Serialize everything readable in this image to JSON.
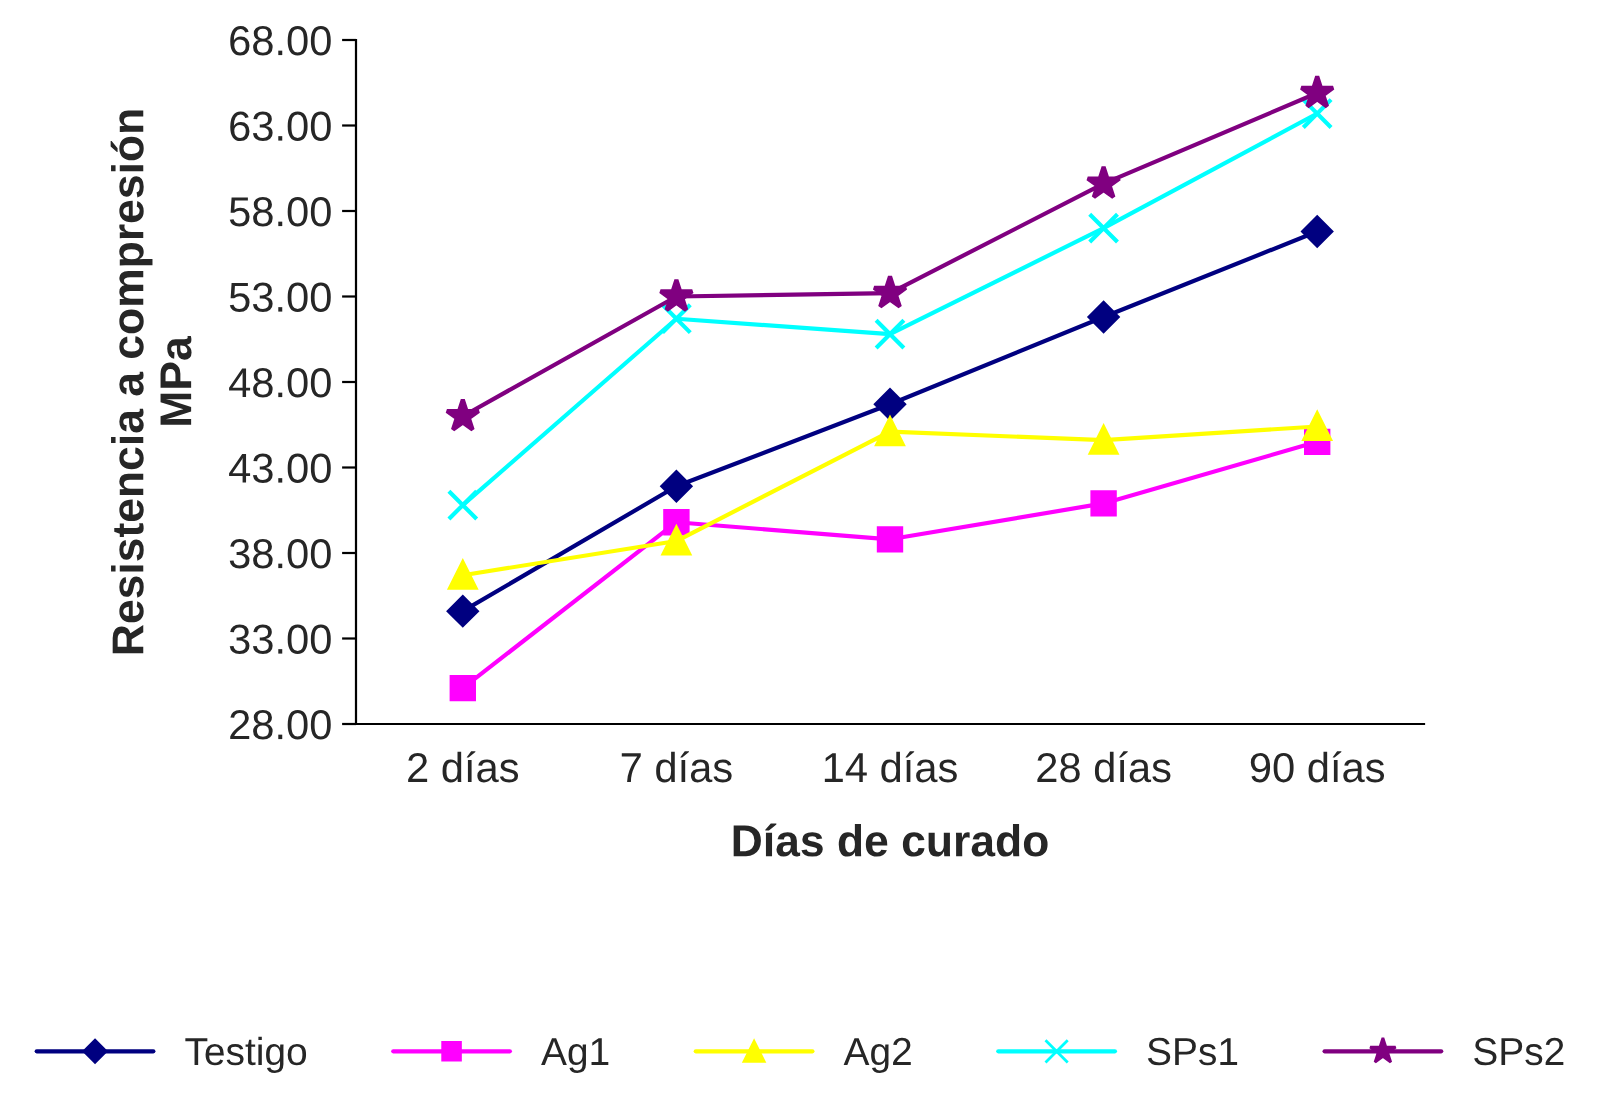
{
  "chart_data": {
    "type": "line",
    "xlabel": "Días de curado",
    "ylabel": "Resistencia a compresión\nMPa",
    "categories": [
      "2 días",
      "7 días",
      "14 días",
      "28 días",
      "90 días"
    ],
    "series": [
      {
        "name": "Testigo",
        "color": "#000080",
        "marker": "diamond",
        "values": [
          34.6,
          41.9,
          46.7,
          51.8,
          56.8
        ]
      },
      {
        "name": "Ag1",
        "color": "#ff00ff",
        "marker": "square",
        "values": [
          30.1,
          39.8,
          38.8,
          40.9,
          44.5
        ]
      },
      {
        "name": "Ag2",
        "color": "#ffff00",
        "marker": "triangle",
        "values": [
          36.7,
          38.7,
          45.1,
          44.6,
          45.4
        ]
      },
      {
        "name": "SPs1",
        "color": "#00ffff",
        "marker": "cross",
        "values": [
          40.8,
          51.7,
          50.8,
          57.0,
          63.7
        ]
      },
      {
        "name": "SPs2",
        "color": "#800080",
        "marker": "star",
        "values": [
          46.0,
          53.0,
          53.2,
          59.6,
          64.9
        ]
      }
    ],
    "ylim": [
      28,
      68
    ],
    "yticks": [
      {
        "value": 28,
        "label": "28.00"
      },
      {
        "value": 33,
        "label": "33.00"
      },
      {
        "value": 38,
        "label": "38.00"
      },
      {
        "value": 43,
        "label": "43.00"
      },
      {
        "value": 48,
        "label": "48.00"
      },
      {
        "value": 53,
        "label": "53.00"
      },
      {
        "value": 58,
        "label": "58.00"
      },
      {
        "value": 63,
        "label": "63.00"
      },
      {
        "value": 68,
        "label": "68.00"
      }
    ],
    "grid": false,
    "legend": "bottom",
    "line_style": "solid"
  }
}
